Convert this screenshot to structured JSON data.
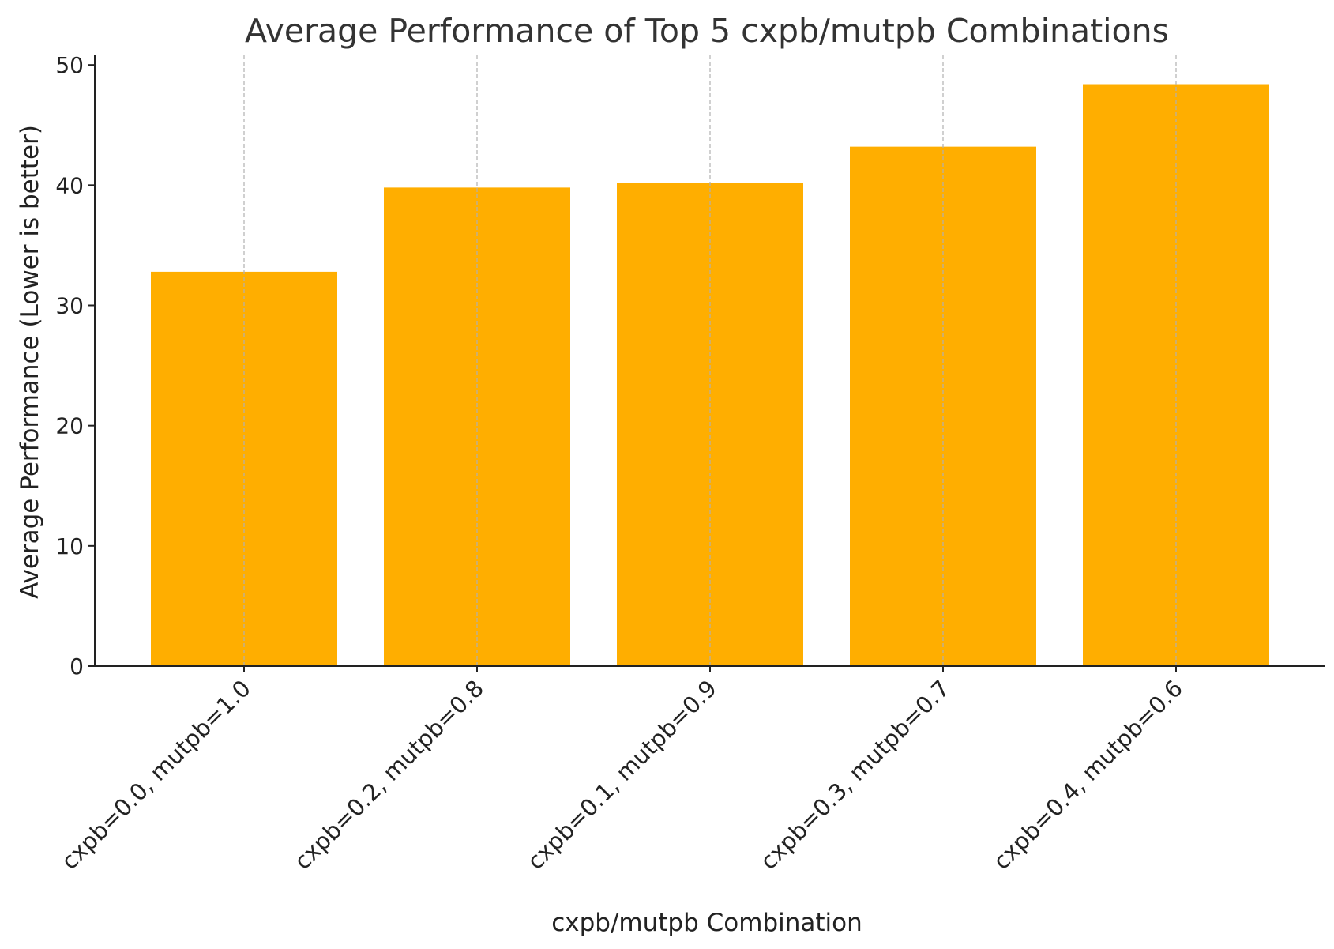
{
  "chart_data": {
    "type": "bar",
    "title": "Average Performance of Top 5 cxpb/mutpb Combinations",
    "xlabel": "cxpb/mutpb Combination",
    "ylabel": "Average Performance (Lower is better)",
    "categories": [
      "cxpb=0.0, mutpb=1.0",
      "cxpb=0.2, mutpb=0.8",
      "cxpb=0.1, mutpb=0.9",
      "cxpb=0.3, mutpb=0.7",
      "cxpb=0.4, mutpb=0.6"
    ],
    "values": [
      32.8,
      39.8,
      40.2,
      43.2,
      48.4
    ],
    "yticks": [
      "0",
      "10",
      "20",
      "30",
      "40",
      "50"
    ],
    "ytick_values": [
      0,
      10,
      20,
      30,
      40,
      50
    ],
    "ylim": [
      0,
      50.8
    ],
    "grid": "vertical dashed lines at categories",
    "bar_color": "#FFAE00",
    "grid_color": "#b0b0b0",
    "axis_color": "#222222"
  }
}
